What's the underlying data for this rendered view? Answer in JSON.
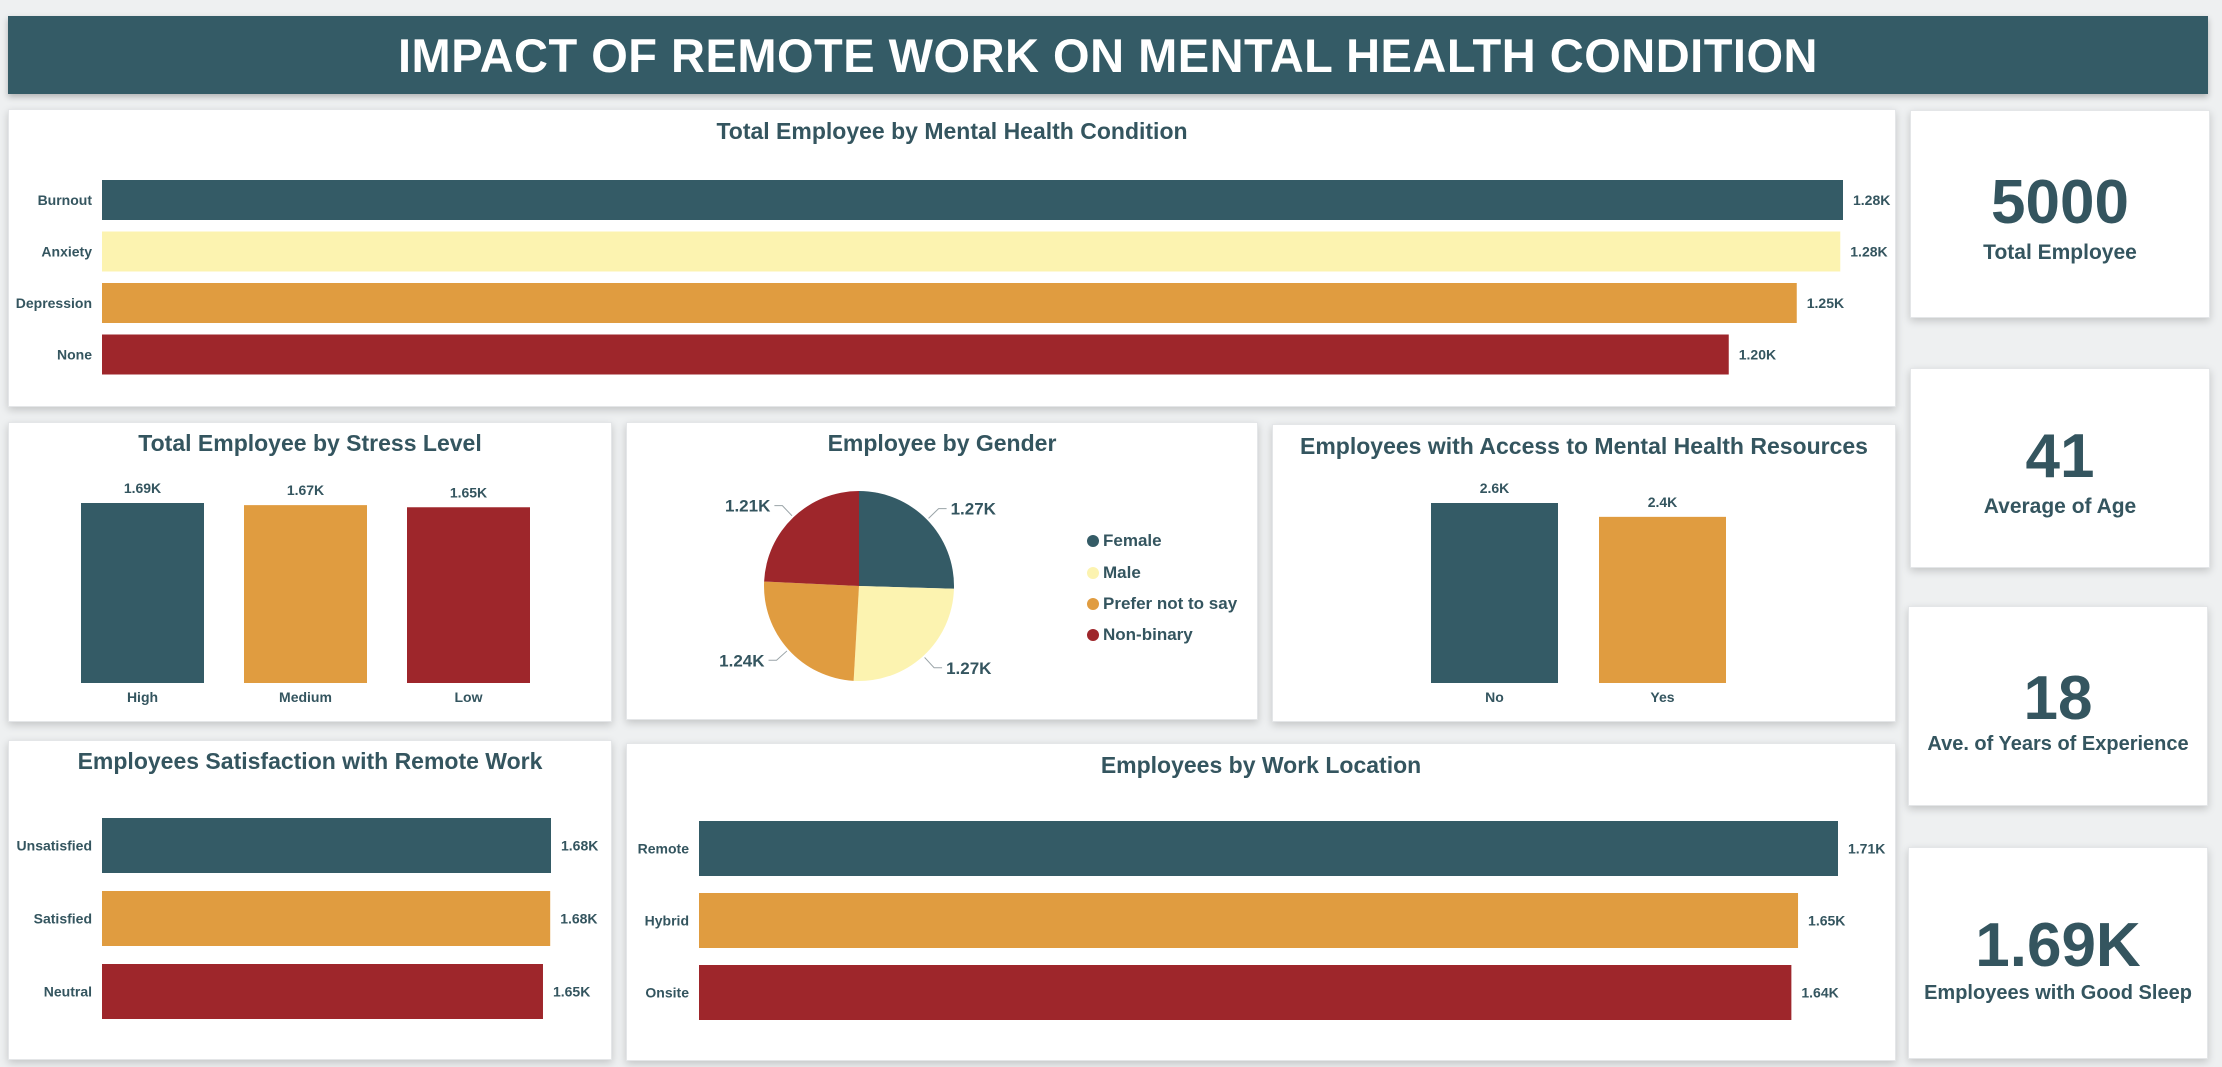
{
  "page": {
    "title": "IMPACT OF REMOTE WORK ON MENTAL HEALTH CONDITION"
  },
  "colors": {
    "teal": "#345b66",
    "cream": "#fcf3b0",
    "orange": "#e09c40",
    "red": "#9e262b",
    "header_bg": "#345b66"
  },
  "kpis": [
    {
      "value": "5000",
      "label": "Total Employee"
    },
    {
      "value": "41",
      "label": "Average of Age"
    },
    {
      "value": "18",
      "label": "Ave. of Years of Experience"
    },
    {
      "value": "1.69K",
      "label": "Employees with Good Sleep"
    }
  ],
  "chart_data": [
    {
      "id": "mental",
      "type": "bar",
      "orientation": "horizontal",
      "title": "Total Employee by Mental Health Condition",
      "categories": [
        "Burnout",
        "Anxiety",
        "Depression",
        "None"
      ],
      "values": [
        1280,
        1278,
        1246,
        1196
      ],
      "value_labels": [
        "1.28K",
        "1.28K",
        "1.25K",
        "1.20K"
      ],
      "bar_colors": [
        "#345b66",
        "#fcf3b0",
        "#e09c40",
        "#9e262b"
      ],
      "xlim": [
        0,
        1280
      ]
    },
    {
      "id": "stress",
      "type": "bar",
      "orientation": "vertical",
      "title": "Total Employee by Stress Level",
      "categories": [
        "High",
        "Medium",
        "Low"
      ],
      "values": [
        1690,
        1670,
        1650
      ],
      "value_labels": [
        "1.69K",
        "1.67K",
        "1.65K"
      ],
      "bar_colors": [
        "#345b66",
        "#e09c40",
        "#9e262b"
      ],
      "ylim": [
        0,
        1690
      ]
    },
    {
      "id": "gender",
      "type": "pie",
      "title": "Employee by Gender",
      "categories": [
        "Female",
        "Male",
        "Prefer not to say",
        "Non-binary"
      ],
      "values": [
        1270,
        1270,
        1240,
        1210
      ],
      "value_labels": [
        "1.27K",
        "1.27K",
        "1.24K",
        "1.21K"
      ],
      "colors": [
        "#345b66",
        "#fcf3b0",
        "#e09c40",
        "#9e262b"
      ],
      "legend": "right"
    },
    {
      "id": "access",
      "type": "bar",
      "orientation": "vertical",
      "title": "Employees with Access to Mental Health Resources",
      "categories": [
        "No",
        "Yes"
      ],
      "values": [
        2600,
        2400
      ],
      "value_labels": [
        "2.6K",
        "2.4K"
      ],
      "bar_colors": [
        "#345b66",
        "#e09c40"
      ],
      "ylim": [
        0,
        2600
      ]
    },
    {
      "id": "satisfaction",
      "type": "bar",
      "orientation": "horizontal",
      "title": "Employees Satisfaction with Remote Work",
      "categories": [
        "Unsatisfied",
        "Satisfied",
        "Neutral"
      ],
      "values": [
        1680,
        1677,
        1650
      ],
      "value_labels": [
        "1.68K",
        "1.68K",
        "1.65K"
      ],
      "bar_colors": [
        "#345b66",
        "#e09c40",
        "#9e262b"
      ],
      "xlim": [
        0,
        1680
      ]
    },
    {
      "id": "location",
      "type": "bar",
      "orientation": "horizontal",
      "title": "Employees by Work Location",
      "categories": [
        "Remote",
        "Hybrid",
        "Onsite"
      ],
      "values": [
        1710,
        1650,
        1640
      ],
      "value_labels": [
        "1.71K",
        "1.65K",
        "1.64K"
      ],
      "bar_colors": [
        "#345b66",
        "#e09c40",
        "#9e262b"
      ],
      "xlim": [
        0,
        1710
      ]
    }
  ]
}
